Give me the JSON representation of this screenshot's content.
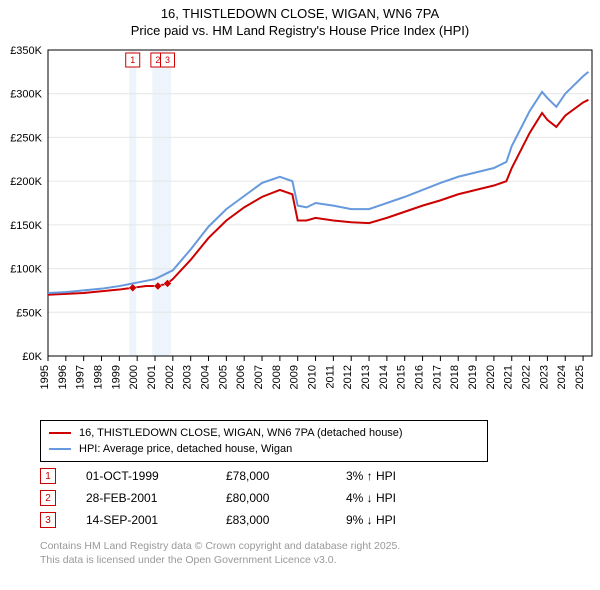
{
  "title_line1": "16, THISTLEDOWN CLOSE, WIGAN, WN6 7PA",
  "title_line2": "Price paid vs. HM Land Registry's House Price Index (HPI)",
  "chart": {
    "type": "line",
    "background_color": "#ffffff",
    "plot_border_color": "#000000",
    "grid_color": "#e6e6e6",
    "x_domain": [
      1995,
      2025.5
    ],
    "y_domain": [
      0,
      350000
    ],
    "x_ticks": [
      1995,
      1996,
      1997,
      1998,
      1999,
      2000,
      2001,
      2002,
      2003,
      2004,
      2005,
      2006,
      2007,
      2008,
      2009,
      2010,
      2011,
      2012,
      2013,
      2014,
      2015,
      2016,
      2017,
      2018,
      2019,
      2020,
      2021,
      2022,
      2023,
      2024,
      2025
    ],
    "y_ticks": [
      0,
      50000,
      100000,
      150000,
      200000,
      250000,
      300000,
      350000
    ],
    "y_tick_labels": [
      "£0K",
      "£50K",
      "£100K",
      "£150K",
      "£200K",
      "£250K",
      "£300K",
      "£350K"
    ],
    "series": [
      {
        "name": "price_paid",
        "color": "#cc0000",
        "width": 2,
        "points": [
          [
            1995,
            70000
          ],
          [
            1996,
            71000
          ],
          [
            1997,
            72000
          ],
          [
            1998,
            74000
          ],
          [
            1999,
            76000
          ],
          [
            1999.75,
            78000
          ],
          [
            2000.5,
            80000
          ],
          [
            2001.16,
            80000
          ],
          [
            2001.7,
            83000
          ],
          [
            2002,
            88000
          ],
          [
            2003,
            110000
          ],
          [
            2004,
            135000
          ],
          [
            2005,
            155000
          ],
          [
            2006,
            170000
          ],
          [
            2007,
            182000
          ],
          [
            2008,
            190000
          ],
          [
            2008.7,
            185000
          ],
          [
            2009,
            155000
          ],
          [
            2009.5,
            155000
          ],
          [
            2010,
            158000
          ],
          [
            2011,
            155000
          ],
          [
            2012,
            153000
          ],
          [
            2013,
            152000
          ],
          [
            2014,
            158000
          ],
          [
            2015,
            165000
          ],
          [
            2016,
            172000
          ],
          [
            2017,
            178000
          ],
          [
            2018,
            185000
          ],
          [
            2019,
            190000
          ],
          [
            2020,
            195000
          ],
          [
            2020.7,
            200000
          ],
          [
            2021,
            215000
          ],
          [
            2022,
            255000
          ],
          [
            2022.7,
            278000
          ],
          [
            2023,
            270000
          ],
          [
            2023.5,
            262000
          ],
          [
            2024,
            275000
          ],
          [
            2025,
            290000
          ],
          [
            2025.3,
            293000
          ]
        ],
        "markers": [
          {
            "x": 1999.75,
            "y": 78000
          },
          {
            "x": 2001.16,
            "y": 80000
          },
          {
            "x": 2001.7,
            "y": 83000
          }
        ]
      },
      {
        "name": "hpi",
        "color": "#6699dd",
        "width": 2,
        "points": [
          [
            1995,
            72000
          ],
          [
            1996,
            73000
          ],
          [
            1997,
            75000
          ],
          [
            1998,
            77000
          ],
          [
            1999,
            80000
          ],
          [
            2000,
            84000
          ],
          [
            2001,
            88000
          ],
          [
            2002,
            98000
          ],
          [
            2003,
            122000
          ],
          [
            2004,
            148000
          ],
          [
            2005,
            168000
          ],
          [
            2006,
            183000
          ],
          [
            2007,
            198000
          ],
          [
            2008,
            205000
          ],
          [
            2008.7,
            200000
          ],
          [
            2009,
            172000
          ],
          [
            2009.5,
            170000
          ],
          [
            2010,
            175000
          ],
          [
            2011,
            172000
          ],
          [
            2012,
            168000
          ],
          [
            2013,
            168000
          ],
          [
            2014,
            175000
          ],
          [
            2015,
            182000
          ],
          [
            2016,
            190000
          ],
          [
            2017,
            198000
          ],
          [
            2018,
            205000
          ],
          [
            2019,
            210000
          ],
          [
            2020,
            215000
          ],
          [
            2020.7,
            222000
          ],
          [
            2021,
            240000
          ],
          [
            2022,
            280000
          ],
          [
            2022.7,
            302000
          ],
          [
            2023,
            295000
          ],
          [
            2023.5,
            285000
          ],
          [
            2024,
            300000
          ],
          [
            2025,
            320000
          ],
          [
            2025.3,
            325000
          ]
        ]
      }
    ],
    "event_markers": [
      {
        "num": "1",
        "x": 1999.75,
        "shade_from": 1999.55,
        "shade_to": 1999.95
      },
      {
        "num": "2",
        "x": 2001.16,
        "shade_from": 2000.85,
        "shade_to": 2001.35
      },
      {
        "num": "3",
        "x": 2001.7,
        "shade_from": 2001.35,
        "shade_to": 2001.9
      }
    ],
    "shade_color": "#eef4fb"
  },
  "legend": {
    "items": [
      {
        "color": "#cc0000",
        "label": "16, THISTLEDOWN CLOSE, WIGAN, WN6 7PA (detached house)"
      },
      {
        "color": "#6699dd",
        "label": "HPI: Average price, detached house, Wigan"
      }
    ]
  },
  "events": [
    {
      "num": "1",
      "date": "01-OCT-1999",
      "price": "£78,000",
      "change": "3% ↑ HPI"
    },
    {
      "num": "2",
      "date": "28-FEB-2001",
      "price": "£80,000",
      "change": "4% ↓ HPI"
    },
    {
      "num": "3",
      "date": "14-SEP-2001",
      "price": "£83,000",
      "change": "9% ↓ HPI"
    }
  ],
  "attribution_line1": "Contains HM Land Registry data © Crown copyright and database right 2025.",
  "attribution_line2": "This data is licensed under the Open Government Licence v3.0."
}
